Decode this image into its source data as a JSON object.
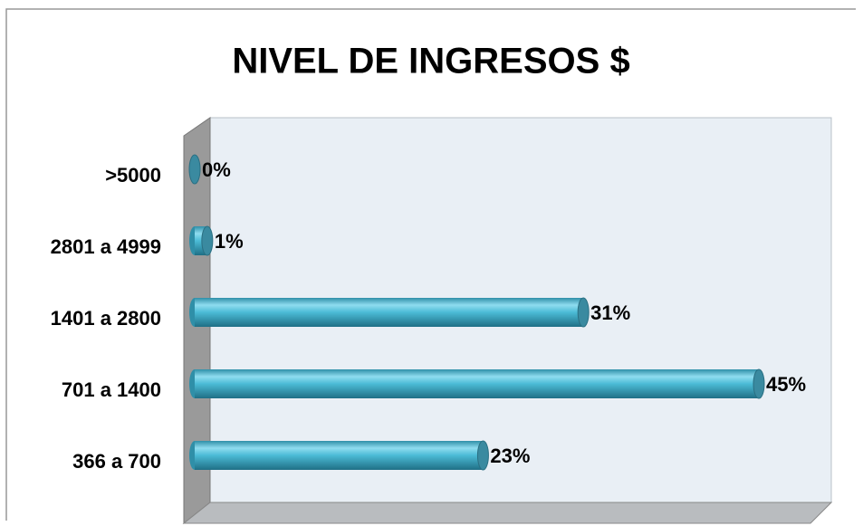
{
  "chart_data": {
    "type": "bar",
    "orientation": "horizontal",
    "title": "NIVEL DE INGRESOS $",
    "categories": [
      ">5000",
      "2801 a 4999",
      "1401 a 2800",
      "701 a 1400",
      "366 a 700"
    ],
    "values": [
      0,
      1,
      31,
      45,
      23
    ],
    "value_labels": [
      "0%",
      "1%",
      "31%",
      "45%",
      "23%"
    ],
    "color": "#4bbbd6"
  }
}
